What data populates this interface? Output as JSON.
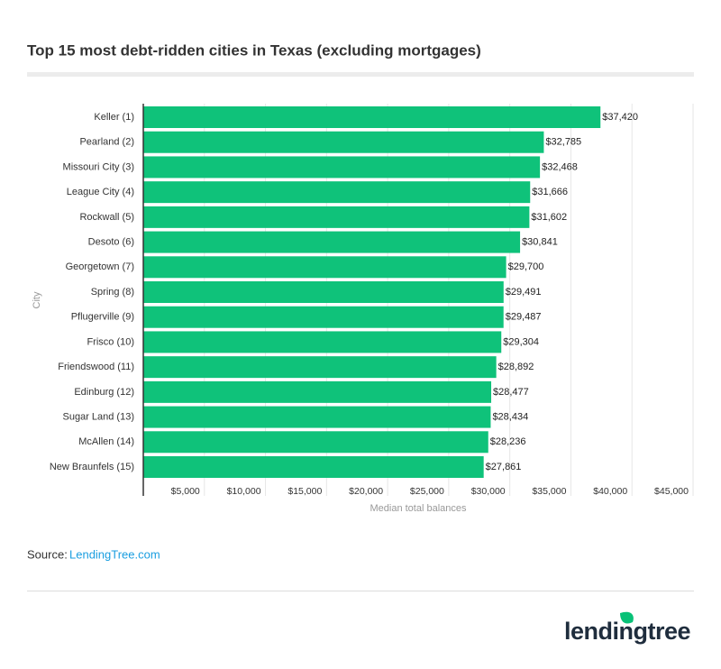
{
  "chart_data": {
    "type": "barh",
    "title": "Top 15 most debt-ridden cities in Texas (excluding mortgages)",
    "y_label": "City",
    "x_label": "Median total balances",
    "color": "#0fc27a",
    "grid": true,
    "categories": [
      "Keller (1)",
      "Pearland (2)",
      "Missouri City (3)",
      "League City (4)",
      "Rockwall (5)",
      "Desoto (6)",
      "Georgetown (7)",
      "Spring (8)",
      "Pflugerville (9)",
      "Frisco (10)",
      "Friendswood (11)",
      "Edinburg (12)",
      "Sugar Land (13)",
      "McAllen (14)",
      "New Braunfels (15)"
    ],
    "values": [
      37420,
      32785,
      32468,
      31666,
      31602,
      30841,
      29700,
      29491,
      29487,
      29304,
      28892,
      28477,
      28434,
      28236,
      27861
    ],
    "value_labels": [
      "$37,420",
      "$32,785",
      "$32,468",
      "$31,666",
      "$31,602",
      "$30,841",
      "$29,700",
      "$29,491",
      "$29,487",
      "$29,304",
      "$28,892",
      "$28,477",
      "$28,434",
      "$28,236",
      "$27,861"
    ],
    "xlim": [
      0,
      45000
    ],
    "xticks": [
      {
        "value": 5000,
        "label": "$5,000"
      },
      {
        "value": 10000,
        "label": "$10,000"
      },
      {
        "value": 15000,
        "label": "$15,000"
      },
      {
        "value": 20000,
        "label": "$20,000"
      },
      {
        "value": 25000,
        "label": "$25,000"
      },
      {
        "value": 30000,
        "label": "$30,000"
      },
      {
        "value": 35000,
        "label": "$35,000"
      },
      {
        "value": 40000,
        "label": "$40,000"
      },
      {
        "value": 45000,
        "label": "$45,000"
      }
    ]
  },
  "footer": {
    "source_label": "Source:",
    "source_link": "LendingTree.com",
    "logo": "lendingtree"
  }
}
